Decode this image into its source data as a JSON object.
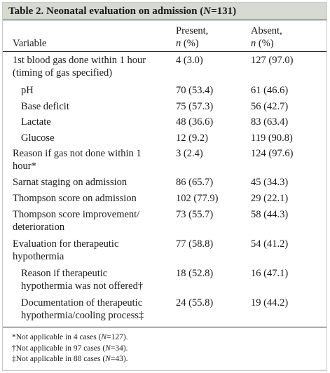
{
  "table": {
    "title": "Table 2. Neonatal evaluation on admission (N=131)",
    "header": {
      "variable": "Variable",
      "present_line1": "Present,",
      "present_line2": "n (%)",
      "absent_line1": "Absent,",
      "absent_line2": "n (%)"
    },
    "rows": [
      {
        "label": [
          "1st blood gas done within 1 hour",
          "(timing of gas specified)"
        ],
        "present": "4 (3.0)",
        "absent": "127 (97.0)",
        "indent": 0
      },
      {
        "label": [
          "pH"
        ],
        "present": "70 (53.4)",
        "absent": "61 (46.6)",
        "indent": 1
      },
      {
        "label": [
          "Base deficit"
        ],
        "present": "75 (57.3)",
        "absent": "56 (42.7)",
        "indent": 1
      },
      {
        "label": [
          "Lactate"
        ],
        "present": "48 (36.6)",
        "absent": "83 (63.4)",
        "indent": 1
      },
      {
        "label": [
          "Glucose"
        ],
        "present": "12 (9.2)",
        "absent": "119 (90.8)",
        "indent": 1
      },
      {
        "label": [
          "Reason if gas not done within 1",
          "hour*"
        ],
        "present": "3 (2.4)",
        "absent": "124 (97.6)",
        "indent": 0
      },
      {
        "label": [
          "Sarnat staging on admission"
        ],
        "present": "86 (65.7)",
        "absent": "45 (34.3)",
        "indent": 0
      },
      {
        "label": [
          "Thompson score on admission"
        ],
        "present": "102 (77.9)",
        "absent": "29 (22.1)",
        "indent": 0
      },
      {
        "label": [
          "Thompson score improvement/",
          "deterioration"
        ],
        "present": "73 (55.7)",
        "absent": "58 (44.3)",
        "indent": 0
      },
      {
        "label": [
          "Evaluation for therapeutic",
          "hypothermia"
        ],
        "present": "77 (58.8)",
        "absent": "54 (41.2)",
        "indent": 0
      },
      {
        "label": [
          "Reason if therapeutic",
          "hypothermia was not offered†"
        ],
        "present": "18 (52.8)",
        "absent": "16 (47.1)",
        "indent": 1
      },
      {
        "label": [
          "Documentation of therapeutic",
          "hypothermia/cooling process‡"
        ],
        "present": "24 (55.8)",
        "absent": "19 (44.2)",
        "indent": 1
      }
    ],
    "footnotes": [
      "*Not applicable in 4 cases (N=127).",
      "†Not applicable in 97 cases (N=34).",
      "‡Not applicable in 88 cases (N=43)."
    ]
  }
}
